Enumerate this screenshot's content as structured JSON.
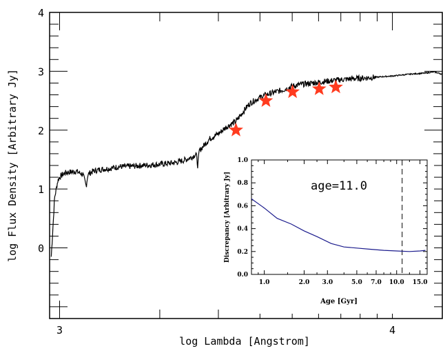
{
  "chart_data": [
    {
      "type": "line",
      "xlabel": "log Lambda [Angstrom]",
      "ylabel": "log Flux Density [Arbitrary Jy]",
      "xlim": [
        2.97,
        4.15
      ],
      "ylim": [
        -1.2,
        4.0
      ],
      "x_ticklabels": [
        "3",
        "4"
      ],
      "y_ticklabels": [
        "0",
        "1",
        "2",
        "3",
        "4"
      ],
      "series": [
        {
          "style": "line",
          "color": "#000000",
          "x": [
            2.975,
            2.985,
            2.995,
            3.0,
            3.01,
            3.02,
            3.05,
            3.07,
            3.08,
            3.085,
            3.1,
            3.12,
            3.15,
            3.18,
            3.2,
            3.25,
            3.3,
            3.35,
            3.38,
            3.4,
            3.41,
            3.415,
            3.42,
            3.45,
            3.48,
            3.5,
            3.53,
            3.55,
            3.57,
            3.6,
            3.62,
            3.65,
            3.68,
            3.7,
            3.73,
            3.76,
            3.8,
            3.85,
            3.9,
            3.95,
            4.0,
            4.05,
            4.1,
            4.125,
            4.15
          ],
          "y": [
            -0.15,
            0.85,
            1.15,
            1.2,
            1.25,
            1.28,
            1.3,
            1.25,
            1.05,
            1.25,
            1.3,
            1.33,
            1.35,
            1.38,
            1.38,
            1.4,
            1.42,
            1.45,
            1.5,
            1.55,
            1.6,
            1.4,
            1.65,
            1.85,
            1.95,
            2.05,
            2.15,
            2.3,
            2.45,
            2.55,
            2.6,
            2.65,
            2.7,
            2.75,
            2.78,
            2.8,
            2.83,
            2.86,
            2.88,
            2.9,
            2.92,
            2.95,
            2.97,
            2.99,
            2.95
          ]
        },
        {
          "style": "scatter",
          "marker": "star",
          "color": "#ff3b1f",
          "x": [
            3.53,
            3.62,
            3.7,
            3.78,
            3.83
          ],
          "y": [
            2.0,
            2.5,
            2.65,
            2.7,
            2.73
          ]
        }
      ]
    },
    {
      "type": "line",
      "annotation": "age=11.0",
      "xlabel": "Age [Gyr]",
      "ylabel": "Discrepancy [Arbitrary Jy]",
      "xscale": "log",
      "xlim": [
        0.8,
        17.0
      ],
      "ylim": [
        0.0,
        1.0
      ],
      "x_ticklabels": [
        "1.0",
        "2.0",
        "3.0",
        "5.0",
        "7.0",
        "10.0",
        "15.0"
      ],
      "x_tickvalues": [
        1.0,
        2.0,
        3.0,
        5.0,
        7.0,
        10.0,
        15.0
      ],
      "y_ticklabels": [
        "0.0",
        "0.2",
        "0.4",
        "0.6",
        "0.8",
        "1.0"
      ],
      "y_tickvalues": [
        0.0,
        0.2,
        0.4,
        0.6,
        0.8,
        1.0
      ],
      "vline": 11.0,
      "series": [
        {
          "color": "#1a1a8c",
          "x": [
            0.8,
            1.0,
            1.25,
            1.6,
            2.0,
            2.5,
            3.2,
            4.0,
            5.0,
            6.3,
            8.0,
            10.0,
            12.5,
            15.0,
            16.5
          ],
          "y": [
            0.66,
            0.58,
            0.49,
            0.44,
            0.38,
            0.33,
            0.27,
            0.24,
            0.23,
            0.22,
            0.21,
            0.205,
            0.2,
            0.205,
            0.21
          ]
        }
      ]
    }
  ]
}
